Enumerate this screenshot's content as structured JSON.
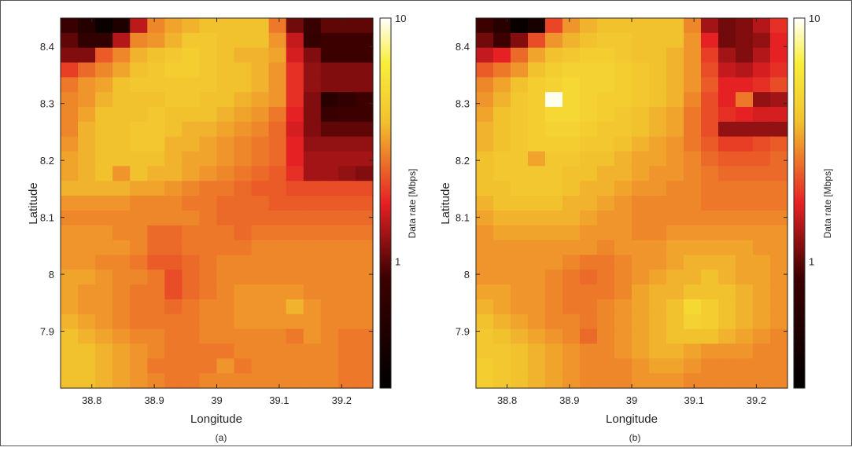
{
  "figure": {
    "captions": [
      "(a)",
      "(b)"
    ]
  },
  "colormap": {
    "name": "hot",
    "stops": [
      "#000000",
      "#e62124",
      "#f2c12e",
      "#ffffff"
    ]
  },
  "chart_data": [
    {
      "type": "heatmap",
      "caption": "(a)",
      "xlabel": "Longitude",
      "ylabel": "Latitude",
      "colorbar_label": "Data rate [Mbps]",
      "colorbar_scale": "log",
      "colorbar_ticks": [
        1,
        10
      ],
      "colorbar_tick_labels": [
        "1",
        "10"
      ],
      "clim": [
        0.3,
        10
      ],
      "xlim": [
        38.75,
        39.25
      ],
      "ylim": [
        7.8,
        8.45
      ],
      "xticks": [
        38.8,
        38.9,
        39.0,
        39.1,
        39.2
      ],
      "xtick_labels": [
        "38.8",
        "38.9",
        "39",
        "39.1",
        "39.2"
      ],
      "yticks": [
        7.9,
        8.0,
        8.1,
        8.2,
        8.3,
        8.4
      ],
      "ytick_labels": [
        "7.9",
        "8",
        "8.1",
        "8.2",
        "8.3",
        "8.4"
      ],
      "grid": false,
      "cell_values_note": "rows ordered from top (north) to bottom (south); values are color levels 0..1 on the log color scale",
      "values": [
        [
          0.28,
          0.18,
          0.05,
          0.15,
          0.45,
          0.64,
          0.68,
          0.7,
          0.72,
          0.72,
          0.72,
          0.72,
          0.62,
          0.36,
          0.28,
          0.34,
          0.34,
          0.34
        ],
        [
          0.34,
          0.24,
          0.24,
          0.44,
          0.64,
          0.66,
          0.7,
          0.74,
          0.74,
          0.72,
          0.72,
          0.72,
          0.66,
          0.46,
          0.26,
          0.3,
          0.3,
          0.3
        ],
        [
          0.38,
          0.38,
          0.58,
          0.64,
          0.7,
          0.72,
          0.74,
          0.76,
          0.74,
          0.72,
          0.7,
          0.7,
          0.68,
          0.48,
          0.38,
          0.3,
          0.3,
          0.3
        ],
        [
          0.54,
          0.6,
          0.64,
          0.68,
          0.72,
          0.74,
          0.76,
          0.76,
          0.74,
          0.72,
          0.72,
          0.7,
          0.66,
          0.52,
          0.4,
          0.38,
          0.38,
          0.38
        ],
        [
          0.62,
          0.66,
          0.68,
          0.72,
          0.74,
          0.74,
          0.74,
          0.74,
          0.74,
          0.72,
          0.72,
          0.7,
          0.66,
          0.52,
          0.4,
          0.38,
          0.38,
          0.38
        ],
        [
          0.64,
          0.66,
          0.7,
          0.72,
          0.72,
          0.72,
          0.74,
          0.74,
          0.72,
          0.72,
          0.7,
          0.68,
          0.66,
          0.52,
          0.38,
          0.2,
          0.24,
          0.3
        ],
        [
          0.64,
          0.68,
          0.72,
          0.72,
          0.72,
          0.74,
          0.72,
          0.72,
          0.72,
          0.7,
          0.68,
          0.66,
          0.62,
          0.5,
          0.38,
          0.28,
          0.3,
          0.3
        ],
        [
          0.64,
          0.7,
          0.72,
          0.72,
          0.74,
          0.74,
          0.72,
          0.7,
          0.7,
          0.68,
          0.66,
          0.64,
          0.6,
          0.48,
          0.38,
          0.34,
          0.34,
          0.34
        ],
        [
          0.66,
          0.7,
          0.72,
          0.72,
          0.74,
          0.74,
          0.7,
          0.7,
          0.68,
          0.66,
          0.64,
          0.62,
          0.6,
          0.5,
          0.4,
          0.4,
          0.4,
          0.4
        ],
        [
          0.68,
          0.7,
          0.72,
          0.72,
          0.72,
          0.72,
          0.7,
          0.68,
          0.68,
          0.66,
          0.64,
          0.62,
          0.6,
          0.5,
          0.42,
          0.42,
          0.42,
          0.42
        ],
        [
          0.68,
          0.7,
          0.72,
          0.66,
          0.72,
          0.7,
          0.7,
          0.68,
          0.66,
          0.64,
          0.62,
          0.6,
          0.58,
          0.52,
          0.42,
          0.42,
          0.4,
          0.38
        ],
        [
          0.7,
          0.7,
          0.7,
          0.7,
          0.68,
          0.68,
          0.66,
          0.64,
          0.62,
          0.62,
          0.6,
          0.58,
          0.58,
          0.56,
          0.56,
          0.56,
          0.56,
          0.56
        ],
        [
          0.66,
          0.66,
          0.66,
          0.66,
          0.64,
          0.64,
          0.64,
          0.62,
          0.62,
          0.6,
          0.6,
          0.6,
          0.58,
          0.58,
          0.58,
          0.58,
          0.58,
          0.58
        ],
        [
          0.64,
          0.64,
          0.64,
          0.64,
          0.64,
          0.64,
          0.64,
          0.64,
          0.62,
          0.6,
          0.6,
          0.6,
          0.6,
          0.6,
          0.6,
          0.6,
          0.6,
          0.6
        ],
        [
          0.66,
          0.66,
          0.66,
          0.64,
          0.64,
          0.6,
          0.6,
          0.62,
          0.62,
          0.62,
          0.6,
          0.62,
          0.62,
          0.62,
          0.62,
          0.62,
          0.62,
          0.62
        ],
        [
          0.66,
          0.66,
          0.66,
          0.66,
          0.64,
          0.6,
          0.6,
          0.62,
          0.62,
          0.62,
          0.62,
          0.64,
          0.64,
          0.64,
          0.64,
          0.64,
          0.64,
          0.64
        ],
        [
          0.66,
          0.66,
          0.64,
          0.64,
          0.62,
          0.58,
          0.58,
          0.6,
          0.62,
          0.64,
          0.64,
          0.64,
          0.64,
          0.64,
          0.64,
          0.64,
          0.64,
          0.64
        ],
        [
          0.68,
          0.68,
          0.66,
          0.64,
          0.64,
          0.62,
          0.56,
          0.6,
          0.62,
          0.64,
          0.64,
          0.64,
          0.64,
          0.64,
          0.64,
          0.64,
          0.64,
          0.64
        ],
        [
          0.68,
          0.66,
          0.66,
          0.64,
          0.62,
          0.62,
          0.56,
          0.6,
          0.62,
          0.64,
          0.66,
          0.66,
          0.66,
          0.66,
          0.64,
          0.64,
          0.64,
          0.64
        ],
        [
          0.68,
          0.66,
          0.66,
          0.64,
          0.62,
          0.62,
          0.6,
          0.62,
          0.64,
          0.64,
          0.66,
          0.66,
          0.66,
          0.7,
          0.66,
          0.64,
          0.64,
          0.64
        ],
        [
          0.7,
          0.68,
          0.66,
          0.64,
          0.62,
          0.62,
          0.62,
          0.62,
          0.64,
          0.64,
          0.66,
          0.66,
          0.66,
          0.66,
          0.66,
          0.64,
          0.64,
          0.64
        ],
        [
          0.72,
          0.7,
          0.68,
          0.66,
          0.64,
          0.64,
          0.62,
          0.62,
          0.64,
          0.64,
          0.64,
          0.64,
          0.64,
          0.62,
          0.66,
          0.64,
          0.62,
          0.62
        ],
        [
          0.72,
          0.72,
          0.7,
          0.68,
          0.66,
          0.64,
          0.62,
          0.62,
          0.62,
          0.62,
          0.64,
          0.64,
          0.64,
          0.64,
          0.64,
          0.64,
          0.62,
          0.62
        ],
        [
          0.72,
          0.72,
          0.7,
          0.68,
          0.66,
          0.62,
          0.62,
          0.62,
          0.62,
          0.66,
          0.62,
          0.64,
          0.64,
          0.64,
          0.64,
          0.64,
          0.62,
          0.62
        ],
        [
          0.72,
          0.72,
          0.7,
          0.68,
          0.66,
          0.64,
          0.62,
          0.62,
          0.64,
          0.64,
          0.64,
          0.64,
          0.64,
          0.64,
          0.64,
          0.64,
          0.62,
          0.62
        ]
      ]
    },
    {
      "type": "heatmap",
      "caption": "(b)",
      "xlabel": "Longitude",
      "ylabel": "Latitude",
      "colorbar_label": "Data rate [Mbps]",
      "colorbar_scale": "log",
      "colorbar_ticks": [
        1,
        10
      ],
      "colorbar_tick_labels": [
        "1",
        "10"
      ],
      "clim": [
        0.3,
        10
      ],
      "xlim": [
        38.75,
        39.25
      ],
      "ylim": [
        7.8,
        8.45
      ],
      "xticks": [
        38.8,
        38.9,
        39.0,
        39.1,
        39.2
      ],
      "xtick_labels": [
        "38.8",
        "38.9",
        "39",
        "39.1",
        "39.2"
      ],
      "yticks": [
        7.9,
        8.0,
        8.1,
        8.2,
        8.3,
        8.4
      ],
      "ytick_labels": [
        "7.9",
        "8",
        "8.1",
        "8.2",
        "8.3",
        "8.4"
      ],
      "grid": false,
      "cell_values_note": "rows ordered from top (north) to bottom (south); values are color levels 0..1 on the log color scale",
      "values": [
        [
          0.3,
          0.2,
          0.04,
          0.12,
          0.55,
          0.66,
          0.7,
          0.72,
          0.72,
          0.72,
          0.72,
          0.72,
          0.64,
          0.42,
          0.36,
          0.38,
          0.44,
          0.52
        ],
        [
          0.36,
          0.3,
          0.38,
          0.56,
          0.66,
          0.7,
          0.72,
          0.74,
          0.74,
          0.72,
          0.72,
          0.72,
          0.66,
          0.5,
          0.36,
          0.38,
          0.4,
          0.5
        ],
        [
          0.46,
          0.5,
          0.6,
          0.68,
          0.72,
          0.74,
          0.76,
          0.76,
          0.74,
          0.72,
          0.72,
          0.7,
          0.66,
          0.54,
          0.42,
          0.38,
          0.44,
          0.5
        ],
        [
          0.58,
          0.62,
          0.66,
          0.72,
          0.76,
          0.78,
          0.78,
          0.78,
          0.76,
          0.74,
          0.72,
          0.7,
          0.66,
          0.56,
          0.46,
          0.44,
          0.48,
          0.52
        ],
        [
          0.64,
          0.68,
          0.72,
          0.76,
          0.78,
          0.8,
          0.78,
          0.78,
          0.76,
          0.74,
          0.72,
          0.7,
          0.66,
          0.58,
          0.5,
          0.5,
          0.52,
          0.56
        ],
        [
          0.66,
          0.7,
          0.74,
          0.76,
          0.99,
          0.8,
          0.78,
          0.76,
          0.76,
          0.74,
          0.72,
          0.7,
          0.64,
          0.56,
          0.5,
          0.62,
          0.4,
          0.42
        ],
        [
          0.68,
          0.72,
          0.74,
          0.76,
          0.8,
          0.8,
          0.78,
          0.76,
          0.74,
          0.72,
          0.7,
          0.68,
          0.62,
          0.56,
          0.52,
          0.5,
          0.48,
          0.48
        ],
        [
          0.7,
          0.72,
          0.74,
          0.76,
          0.78,
          0.78,
          0.76,
          0.74,
          0.74,
          0.72,
          0.7,
          0.68,
          0.62,
          0.56,
          0.4,
          0.4,
          0.4,
          0.4
        ],
        [
          0.7,
          0.72,
          0.74,
          0.76,
          0.76,
          0.76,
          0.74,
          0.74,
          0.72,
          0.7,
          0.68,
          0.66,
          0.62,
          0.58,
          0.54,
          0.54,
          0.56,
          0.58
        ],
        [
          0.72,
          0.74,
          0.74,
          0.68,
          0.74,
          0.74,
          0.72,
          0.72,
          0.7,
          0.68,
          0.68,
          0.66,
          0.64,
          0.6,
          0.58,
          0.58,
          0.58,
          0.6
        ],
        [
          0.72,
          0.74,
          0.74,
          0.74,
          0.74,
          0.72,
          0.72,
          0.7,
          0.7,
          0.68,
          0.66,
          0.66,
          0.64,
          0.62,
          0.6,
          0.6,
          0.6,
          0.6
        ],
        [
          0.72,
          0.72,
          0.74,
          0.74,
          0.74,
          0.72,
          0.7,
          0.7,
          0.68,
          0.66,
          0.66,
          0.64,
          0.64,
          0.62,
          0.62,
          0.62,
          0.62,
          0.62
        ],
        [
          0.7,
          0.72,
          0.72,
          0.72,
          0.72,
          0.7,
          0.7,
          0.68,
          0.66,
          0.64,
          0.64,
          0.64,
          0.64,
          0.62,
          0.62,
          0.62,
          0.62,
          0.62
        ],
        [
          0.68,
          0.7,
          0.7,
          0.7,
          0.7,
          0.7,
          0.68,
          0.66,
          0.66,
          0.64,
          0.64,
          0.64,
          0.64,
          0.64,
          0.64,
          0.64,
          0.64,
          0.64
        ],
        [
          0.66,
          0.68,
          0.68,
          0.68,
          0.68,
          0.68,
          0.66,
          0.66,
          0.66,
          0.64,
          0.64,
          0.66,
          0.66,
          0.66,
          0.66,
          0.66,
          0.66,
          0.66
        ],
        [
          0.66,
          0.66,
          0.66,
          0.66,
          0.66,
          0.66,
          0.66,
          0.64,
          0.66,
          0.66,
          0.66,
          0.68,
          0.68,
          0.68,
          0.68,
          0.68,
          0.66,
          0.66
        ],
        [
          0.66,
          0.66,
          0.66,
          0.66,
          0.66,
          0.64,
          0.62,
          0.62,
          0.64,
          0.66,
          0.66,
          0.68,
          0.7,
          0.7,
          0.7,
          0.68,
          0.68,
          0.66
        ],
        [
          0.66,
          0.66,
          0.66,
          0.66,
          0.64,
          0.62,
          0.6,
          0.62,
          0.64,
          0.66,
          0.68,
          0.7,
          0.7,
          0.72,
          0.7,
          0.68,
          0.68,
          0.66
        ],
        [
          0.68,
          0.68,
          0.66,
          0.66,
          0.64,
          0.62,
          0.62,
          0.62,
          0.64,
          0.68,
          0.7,
          0.7,
          0.72,
          0.72,
          0.72,
          0.7,
          0.68,
          0.66
        ],
        [
          0.7,
          0.68,
          0.66,
          0.66,
          0.64,
          0.62,
          0.62,
          0.64,
          0.66,
          0.68,
          0.7,
          0.72,
          0.8,
          0.76,
          0.72,
          0.7,
          0.68,
          0.66
        ],
        [
          0.72,
          0.7,
          0.68,
          0.66,
          0.64,
          0.64,
          0.62,
          0.64,
          0.66,
          0.68,
          0.7,
          0.72,
          0.78,
          0.76,
          0.72,
          0.7,
          0.68,
          0.66
        ],
        [
          0.74,
          0.72,
          0.7,
          0.68,
          0.66,
          0.64,
          0.6,
          0.64,
          0.66,
          0.68,
          0.7,
          0.72,
          0.72,
          0.72,
          0.7,
          0.68,
          0.66,
          0.64
        ],
        [
          0.74,
          0.74,
          0.72,
          0.7,
          0.68,
          0.66,
          0.64,
          0.64,
          0.66,
          0.68,
          0.7,
          0.7,
          0.68,
          0.66,
          0.66,
          0.66,
          0.64,
          0.64
        ],
        [
          0.76,
          0.74,
          0.72,
          0.7,
          0.68,
          0.66,
          0.64,
          0.64,
          0.64,
          0.66,
          0.68,
          0.68,
          0.66,
          0.64,
          0.64,
          0.64,
          0.64,
          0.64
        ],
        [
          0.76,
          0.74,
          0.72,
          0.7,
          0.68,
          0.66,
          0.64,
          0.64,
          0.64,
          0.66,
          0.66,
          0.66,
          0.64,
          0.64,
          0.64,
          0.64,
          0.64,
          0.64
        ]
      ]
    }
  ]
}
